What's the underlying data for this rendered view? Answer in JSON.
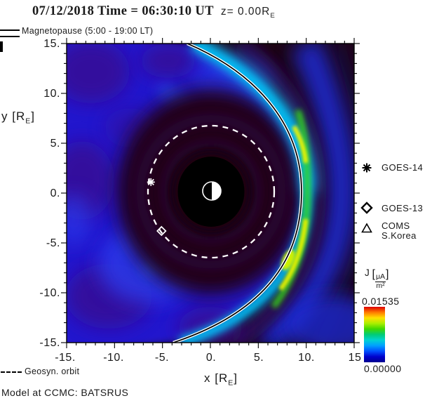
{
  "title": {
    "main": "07/12/2018 Time = 06:30:10 UT",
    "z_prefix": "z= 0.00R",
    "z_sub": "E"
  },
  "mp_legend": {
    "label": "Magnetopause (5:00 - 19:00 LT)"
  },
  "axes": {
    "x_label": {
      "pre": "x [R",
      "sub": "E",
      "post": "]"
    },
    "y_label": {
      "pre": "y [R",
      "sub": "E",
      "post": "]"
    },
    "x_ticks": [
      "-15.",
      "-10.",
      "-5.",
      "0.",
      "5.",
      "10.",
      "15"
    ],
    "y_ticks": [
      "15.",
      "10.",
      "5.",
      "0.",
      "-5.",
      "-10.",
      "-15."
    ]
  },
  "sat_legend": {
    "goes14": "GOES-14",
    "goes13": "GOES-13",
    "coms_line1": "COMS",
    "coms_line2": "S.Korea"
  },
  "colorbar": {
    "quantity": "J",
    "bracket_open": "[",
    "bracket_close": "]",
    "unit_num": "μA",
    "unit_den": "m²",
    "max": "0.01535",
    "min": "0.00000",
    "colors": [
      "#dd0000",
      "#ff7a00",
      "#ffe000",
      "#aaee00",
      "#3fd800",
      "#00cc77",
      "#00d2d2",
      "#009fff",
      "#0050ff",
      "#0000cc",
      "#000090"
    ]
  },
  "footer": {
    "geosyn": "Geosyn. orbit",
    "model": "Model at CCMC: BATSRUS"
  },
  "chart_data": {
    "type": "heatmap",
    "title": "07/12/2018 Time = 06:30:10 UT z= 0.00RE",
    "xlabel": "x [RE]",
    "ylabel": "y [RE]",
    "xlim": [
      -15,
      15
    ],
    "ylim": [
      -15,
      15
    ],
    "x_ticks": [
      -15,
      -10,
      -5,
      0,
      5,
      10,
      15
    ],
    "y_ticks": [
      -15,
      -10,
      -5,
      0,
      5,
      10,
      15
    ],
    "grid": false,
    "colorbar": {
      "label": "J [μA/m²]",
      "min": 0.0,
      "max": 0.01535,
      "palette": "rainbow"
    },
    "features": {
      "magnetopause": {
        "lt_range": "5:00 - 19:00 LT",
        "subsolar_standoff_RE": 9.4,
        "crossing_x_at_top_RE": -2.5,
        "crossing_x_at_bottom_RE": -3.8,
        "line_style": "white-black double line"
      },
      "geosynchronous_orbit_radius_RE": 6.6,
      "inner_boundary_radius_RE": 3.5,
      "earth_symbol": "half-lit circle at origin",
      "current_density_peaks": [
        {
          "x_RE": 8.6,
          "y_RE": 5.1
        },
        {
          "x_RE": 7.7,
          "y_RE": -8.0
        }
      ]
    },
    "satellites": [
      {
        "name": "GOES-14",
        "marker": "asterisk",
        "x_RE": -6.2,
        "y_RE": 1.1
      },
      {
        "name": "GOES-13",
        "marker": "diamond",
        "x_RE": -5.1,
        "y_RE": -3.8
      },
      {
        "name": "COMS S.Korea",
        "marker": "triangle",
        "visible_in_plot": false
      }
    ],
    "model": "BATSRUS (CCMC)"
  }
}
